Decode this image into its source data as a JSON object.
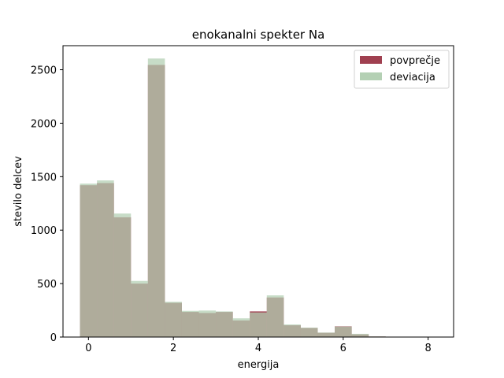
{
  "chart_data": {
    "type": "bar",
    "title": "enokanalni spekter Na",
    "xlabel": "energija",
    "ylabel": "stevilo delcev",
    "xlim": [
      -0.6,
      8.6
    ],
    "ylim": [
      0,
      2725
    ],
    "xticks": [
      0,
      2,
      4,
      6,
      8
    ],
    "yticks": [
      0,
      500,
      1000,
      1500,
      2000,
      2500
    ],
    "grid": false,
    "legend_position": "top-right",
    "bin_edges": [
      -0.2,
      0.2,
      0.6,
      1.0,
      1.4,
      1.8,
      2.2,
      2.6,
      3.0,
      3.4,
      3.8,
      4.2,
      4.6,
      5.0,
      5.4,
      5.8,
      6.2,
      6.6,
      7.0,
      7.4,
      7.8,
      8.2
    ],
    "series": [
      {
        "name": "povprečje",
        "color": "#a04050",
        "values": [
          1420,
          1440,
          1120,
          500,
          2545,
          320,
          235,
          225,
          235,
          155,
          240,
          370,
          110,
          85,
          40,
          100,
          25,
          5,
          3,
          2,
          2
        ]
      },
      {
        "name": "deviacija",
        "color": "#b4d0b4",
        "values": [
          1435,
          1465,
          1155,
          525,
          2605,
          330,
          245,
          248,
          240,
          175,
          230,
          390,
          118,
          88,
          42,
          98,
          30,
          6,
          3,
          2,
          2
        ]
      }
    ]
  }
}
